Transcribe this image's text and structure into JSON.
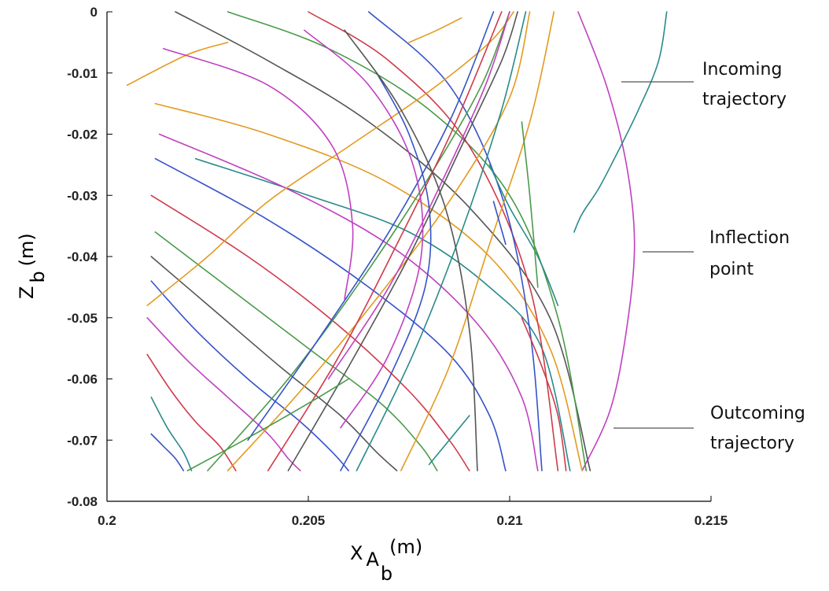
{
  "chart_data": {
    "type": "line",
    "title": "",
    "xlabel": {
      "main": "X",
      "sub1": "A",
      "sub2": "b",
      "unit": "(m)"
    },
    "ylabel": {
      "main": "Z",
      "sub": "b",
      "unit": "(m)"
    },
    "xlim": [
      0.2,
      0.215
    ],
    "ylim": [
      -0.08,
      0
    ],
    "x_ticks": [
      "0.2",
      "0.205",
      "0.21",
      "0.215"
    ],
    "y_ticks": [
      "0",
      "-0.01",
      "-0.02",
      "-0.03",
      "-0.04",
      "-0.05",
      "-0.06",
      "-0.07",
      "-0.08"
    ],
    "grid": false,
    "legend": "none",
    "annotations": [
      {
        "line1": "Incoming",
        "line2": "trajectory"
      },
      {
        "line1": "Inflection",
        "line2": "point"
      },
      {
        "line1": "Outcoming",
        "line2": "trajectory"
      }
    ],
    "series": [
      {
        "color": "#c040c0",
        "x": [
          0.2117,
          0.2124,
          0.2129,
          0.2131,
          0.2129,
          0.2125,
          0.2118
        ],
        "y": [
          0.0,
          -0.012,
          -0.025,
          -0.038,
          -0.052,
          -0.065,
          -0.075
        ]
      },
      {
        "color": "#2a8a8a",
        "x": [
          0.2139,
          0.2137,
          0.2132,
          0.2126,
          0.2122,
          0.2118,
          0.2116
        ],
        "y": [
          0.0,
          -0.008,
          -0.016,
          -0.024,
          -0.029,
          -0.033,
          -0.036
        ]
      },
      {
        "color": "#2a8a8a",
        "x": [
          0.2022,
          0.205,
          0.2075,
          0.2095,
          0.2108,
          0.2115
        ],
        "y": [
          -0.024,
          -0.03,
          -0.036,
          -0.045,
          -0.055,
          -0.075
        ]
      },
      {
        "color": "#e39a1f",
        "x": [
          0.2012,
          0.204,
          0.207,
          0.2095,
          0.211,
          0.2118
        ],
        "y": [
          -0.015,
          -0.02,
          -0.028,
          -0.04,
          -0.055,
          -0.075
        ]
      },
      {
        "color": "#c040c0",
        "x": [
          0.2013,
          0.2045,
          0.2072,
          0.2092,
          0.2103,
          0.2107
        ],
        "y": [
          -0.02,
          -0.029,
          -0.039,
          -0.051,
          -0.063,
          -0.075
        ]
      },
      {
        "color": "#3553c8",
        "x": [
          0.2012,
          0.204,
          0.2065,
          0.2085,
          0.2095,
          0.2099
        ],
        "y": [
          -0.024,
          -0.034,
          -0.045,
          -0.056,
          -0.066,
          -0.075
        ]
      },
      {
        "color": "#d03a4a",
        "x": [
          0.2011,
          0.2035,
          0.2057,
          0.2075,
          0.2085,
          0.209
        ],
        "y": [
          -0.03,
          -0.04,
          -0.051,
          -0.062,
          -0.07,
          -0.075
        ]
      },
      {
        "color": "#4a9a4a",
        "x": [
          0.2012,
          0.203,
          0.205,
          0.2068,
          0.2078,
          0.2082
        ],
        "y": [
          -0.036,
          -0.045,
          -0.055,
          -0.064,
          -0.071,
          -0.075
        ]
      },
      {
        "color": "#555555",
        "x": [
          0.2011,
          0.2027,
          0.2043,
          0.2058,
          0.2067,
          0.2072
        ],
        "y": [
          -0.04,
          -0.049,
          -0.058,
          -0.066,
          -0.072,
          -0.075
        ]
      },
      {
        "color": "#3553c8",
        "x": [
          0.2011,
          0.2022,
          0.2035,
          0.2048,
          0.2056,
          0.206
        ],
        "y": [
          -0.044,
          -0.052,
          -0.06,
          -0.067,
          -0.072,
          -0.075
        ]
      },
      {
        "color": "#c040c0",
        "x": [
          0.201,
          0.202,
          0.203,
          0.204,
          0.2045,
          0.2048
        ],
        "y": [
          -0.05,
          -0.057,
          -0.063,
          -0.069,
          -0.073,
          -0.075
        ]
      },
      {
        "color": "#d03a4a",
        "x": [
          0.201,
          0.2016,
          0.2022,
          0.2028,
          0.2032
        ],
        "y": [
          -0.056,
          -0.062,
          -0.067,
          -0.071,
          -0.075
        ]
      },
      {
        "color": "#2a8a8a",
        "x": [
          0.2011,
          0.2015,
          0.2019,
          0.2021
        ],
        "y": [
          -0.063,
          -0.068,
          -0.072,
          -0.075
        ]
      },
      {
        "color": "#3553c8",
        "x": [
          0.2011,
          0.2014,
          0.2017,
          0.2019
        ],
        "y": [
          -0.069,
          -0.071,
          -0.073,
          -0.075
        ]
      },
      {
        "color": "#555555",
        "x": [
          0.2017,
          0.204,
          0.2065,
          0.209,
          0.211,
          0.212
        ],
        "y": [
          0.0,
          -0.008,
          -0.018,
          -0.032,
          -0.05,
          -0.075
        ]
      },
      {
        "color": "#4a9a4a",
        "x": [
          0.203,
          0.2055,
          0.208,
          0.21,
          0.2112,
          0.2119
        ],
        "y": [
          0.0,
          -0.006,
          -0.016,
          -0.03,
          -0.05,
          -0.075
        ]
      },
      {
        "color": "#d03a4a",
        "x": [
          0.205,
          0.207,
          0.209,
          0.2105,
          0.2112
        ],
        "y": [
          0.0,
          -0.008,
          -0.022,
          -0.045,
          -0.075
        ]
      },
      {
        "color": "#3553c8",
        "x": [
          0.2065,
          0.2085,
          0.2098,
          0.2105,
          0.2108
        ],
        "y": [
          0.0,
          -0.012,
          -0.03,
          -0.052,
          -0.075
        ]
      },
      {
        "color": "#e39a1f",
        "x": [
          0.2005,
          0.202,
          0.203
        ],
        "y": [
          -0.012,
          -0.007,
          -0.005
        ]
      },
      {
        "color": "#e39a1f",
        "x": [
          0.201,
          0.2025,
          0.204,
          0.206,
          0.208,
          0.2095,
          0.2101
        ],
        "y": [
          -0.048,
          -0.04,
          -0.031,
          -0.022,
          -0.013,
          -0.005,
          0.0
        ]
      },
      {
        "color": "#e39a1f",
        "x": [
          0.203,
          0.2048,
          0.2068,
          0.2086,
          0.21,
          0.2105
        ],
        "y": [
          -0.075,
          -0.062,
          -0.046,
          -0.03,
          -0.014,
          0.0
        ]
      },
      {
        "color": "#e39a1f",
        "x": [
          0.2073,
          0.2085,
          0.2095,
          0.2105,
          0.2111
        ],
        "y": [
          -0.075,
          -0.058,
          -0.038,
          -0.018,
          0.0
        ]
      },
      {
        "color": "#4a9a4a",
        "x": [
          0.2025,
          0.2045,
          0.2063,
          0.208,
          0.2093,
          0.21
        ],
        "y": [
          -0.075,
          -0.06,
          -0.044,
          -0.027,
          -0.012,
          0.0
        ]
      },
      {
        "color": "#2a8a8a",
        "x": [
          0.2062,
          0.2076,
          0.2088,
          0.2098,
          0.2104
        ],
        "y": [
          -0.075,
          -0.056,
          -0.036,
          -0.016,
          0.0
        ]
      },
      {
        "color": "#555555",
        "x": [
          0.2045,
          0.206,
          0.2075,
          0.2088,
          0.2098,
          0.2102
        ],
        "y": [
          -0.075,
          -0.058,
          -0.04,
          -0.022,
          -0.008,
          0.0
        ]
      },
      {
        "color": "#3553c8",
        "x": [
          0.2035,
          0.2052,
          0.207,
          0.2085,
          0.2096
        ],
        "y": [
          -0.07,
          -0.054,
          -0.036,
          -0.018,
          0.0
        ]
      },
      {
        "color": "#c040c0",
        "x": [
          0.2055,
          0.207,
          0.2083,
          0.2094,
          0.21
        ],
        "y": [
          -0.06,
          -0.045,
          -0.028,
          -0.012,
          0.0
        ]
      },
      {
        "color": "#d03a4a",
        "x": [
          0.204,
          0.2057,
          0.2072,
          0.2086,
          0.2098
        ],
        "y": [
          -0.075,
          -0.057,
          -0.038,
          -0.019,
          0.0
        ]
      },
      {
        "color": "#c040c0",
        "x": [
          0.2014,
          0.204,
          0.2056,
          0.2061,
          0.2059
        ],
        "y": [
          -0.006,
          -0.012,
          -0.022,
          -0.035,
          -0.047
        ]
      },
      {
        "color": "#c040c0",
        "x": [
          0.2049,
          0.2065,
          0.2076,
          0.2078,
          0.207,
          0.2058
        ],
        "y": [
          -0.003,
          -0.012,
          -0.025,
          -0.04,
          -0.056,
          -0.068
        ]
      },
      {
        "color": "#3553c8",
        "x": [
          0.2067,
          0.2075,
          0.208,
          0.2079,
          0.207,
          0.2058
        ],
        "y": [
          -0.01,
          -0.02,
          -0.032,
          -0.045,
          -0.06,
          -0.075
        ]
      },
      {
        "color": "#555555",
        "x": [
          0.2059,
          0.2073,
          0.2084,
          0.209,
          0.2092
        ],
        "y": [
          -0.003,
          -0.016,
          -0.032,
          -0.052,
          -0.075
        ]
      },
      {
        "color": "#4a9a4a",
        "x": [
          0.202,
          0.2034,
          0.205,
          0.206
        ],
        "y": [
          -0.075,
          -0.07,
          -0.064,
          -0.06
        ]
      },
      {
        "color": "#2a8a8a",
        "x": [
          0.2095,
          0.21,
          0.2107,
          0.2112
        ],
        "y": [
          -0.025,
          -0.032,
          -0.04,
          -0.048
        ]
      },
      {
        "color": "#d03a4a",
        "x": [
          0.2103,
          0.2108,
          0.2112,
          0.2114
        ],
        "y": [
          -0.05,
          -0.058,
          -0.066,
          -0.075
        ]
      },
      {
        "color": "#4a9a4a",
        "x": [
          0.2103,
          0.2105,
          0.2107
        ],
        "y": [
          -0.018,
          -0.03,
          -0.045
        ]
      },
      {
        "color": "#e39a1f",
        "x": [
          0.2075,
          0.2082,
          0.2088
        ],
        "y": [
          -0.005,
          -0.003,
          -0.001
        ]
      },
      {
        "color": "#3553c8",
        "x": [
          0.2096,
          0.2099
        ],
        "y": [
          -0.031,
          -0.038
        ]
      },
      {
        "color": "#2a8a8a",
        "x": [
          0.208,
          0.2085,
          0.209
        ],
        "y": [
          -0.074,
          -0.07,
          -0.066
        ]
      }
    ]
  }
}
